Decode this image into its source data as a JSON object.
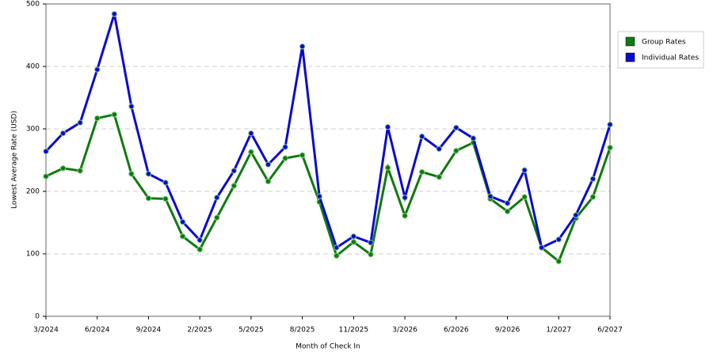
{
  "chart_data": {
    "type": "line",
    "x_label": "Month of Check In",
    "y_label": "Lowest Average Rate (USD)",
    "categories": [
      "3/2024",
      null,
      null,
      "6/2024",
      null,
      null,
      "9/2024",
      null,
      null,
      "2/2025",
      null,
      null,
      "5/2025",
      null,
      null,
      "8/2025",
      null,
      null,
      "11/2025",
      null,
      null,
      "3/2026",
      null,
      null,
      "6/2026",
      null,
      null,
      "9/2026",
      null,
      null,
      "1/2027",
      null,
      null,
      "6/2027"
    ],
    "series": [
      {
        "name": "Group Rates",
        "color": "#0f7a0f",
        "values": [
          224,
          237,
          233,
          317,
          323,
          228,
          189,
          188,
          128,
          107,
          158,
          209,
          263,
          216,
          253,
          258,
          183,
          97,
          119,
          99,
          238,
          161,
          231,
          223,
          265,
          278,
          188,
          168,
          191,
          110,
          88,
          157,
          191,
          270
        ]
      },
      {
        "name": "Individual Rates",
        "color": "#0a0ad0",
        "values": [
          264,
          293,
          310,
          395,
          484,
          336,
          228,
          214,
          151,
          122,
          190,
          233,
          293,
          243,
          271,
          432,
          192,
          110,
          128,
          118,
          303,
          190,
          288,
          268,
          302,
          285,
          192,
          181,
          234,
          110,
          123,
          162,
          220,
          307
        ]
      }
    ],
    "ylim": [
      0,
      500
    ],
    "yticks": [
      0,
      100,
      200,
      300,
      400,
      500
    ],
    "grid": true
  }
}
